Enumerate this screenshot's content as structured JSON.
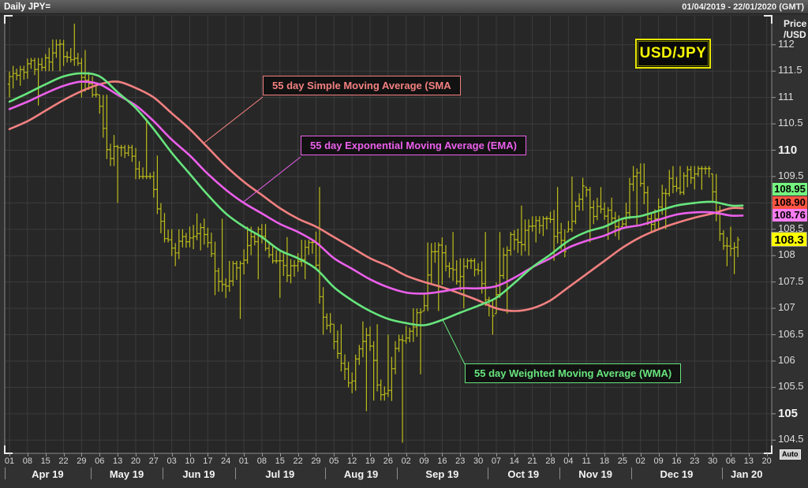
{
  "header": {
    "title": "Daily JPY=",
    "date_range": "01/04/2019 - 22/01/2020 (GMT)"
  },
  "instrument_badge": "USD/JPY",
  "auto_button": "Auto",
  "axis": {
    "unit_line1": "Price",
    "unit_line2": "/USD",
    "y_ticks": [
      112,
      111.5,
      111,
      110.5,
      110,
      109.5,
      109,
      108.5,
      108,
      107.5,
      107,
      106.5,
      106,
      105.5,
      105,
      104.5
    ],
    "y_emphasis": [
      110,
      105
    ],
    "months": [
      {
        "label": "Apr 19",
        "days": [
          "01",
          "08",
          "15",
          "22",
          "29"
        ]
      },
      {
        "label": "May 19",
        "days": [
          "06",
          "13",
          "20",
          "27"
        ]
      },
      {
        "label": "Jun 19",
        "days": [
          "03",
          "10",
          "17",
          "24"
        ]
      },
      {
        "label": "Jul 19",
        "days": [
          "01",
          "08",
          "15",
          "22",
          "29"
        ]
      },
      {
        "label": "Aug 19",
        "days": [
          "05",
          "12",
          "19",
          "26"
        ]
      },
      {
        "label": "Sep 19",
        "days": [
          "02",
          "09",
          "16",
          "23",
          "30"
        ]
      },
      {
        "label": "Oct 19",
        "days": [
          "07",
          "14",
          "21",
          "28"
        ]
      },
      {
        "label": "Nov 19",
        "days": [
          "04",
          "11",
          "18",
          "25"
        ]
      },
      {
        "label": "Dec 19",
        "days": [
          "02",
          "09",
          "16",
          "23",
          "30"
        ]
      },
      {
        "label": "Jan 20",
        "days": [
          "06",
          "13",
          "20"
        ]
      }
    ]
  },
  "annotations": {
    "sma": {
      "label": "55 day Simple Moving Average (SMA"
    },
    "ema": {
      "label": "55 day Exponential Moving Average (EMA)"
    },
    "wma": {
      "label": "55 day Weighted Moving Average (WMA)"
    }
  },
  "chart_data": {
    "type": "ohlc-bar",
    "title": "USD/JPY daily OHLC with 55-day SMA / EMA / WMA",
    "ylim": [
      104.25,
      112.55
    ],
    "ylabel": "Price /USD",
    "grid": true,
    "last_price": 108.3,
    "final_values": {
      "wma": 108.95,
      "sma": 108.9,
      "ema": 108.76
    },
    "days_in_final_week": 3,
    "colors": {
      "plot_bg": "#272727",
      "grid": "#3c3c3c",
      "bars": "#bcbc1c",
      "sma": "#f28080",
      "ema": "#ec5fec",
      "wma": "#67e57d",
      "badge_yellow": "#f7f700"
    },
    "callouts": [
      {
        "series": "wma",
        "value": "108.95",
        "bg": "#75f580"
      },
      {
        "series": "sma",
        "value": "108.90",
        "bg": "#ff5442"
      },
      {
        "series": "ema",
        "value": "108.76",
        "bg": "#f57df0"
      },
      {
        "series": "last",
        "value": "108.3",
        "bg": "#ffff00"
      }
    ],
    "columns": [
      "week_start",
      "open",
      "high",
      "low",
      "close",
      "sma55",
      "ema55",
      "wma55"
    ],
    "weeks": [
      [
        "2019-04-01",
        111.25,
        111.6,
        111.0,
        111.45,
        110.4,
        110.78,
        110.92
      ],
      [
        "2019-04-08",
        111.45,
        111.75,
        110.85,
        111.65,
        110.55,
        110.92,
        111.08
      ],
      [
        "2019-04-15",
        111.6,
        112.1,
        111.5,
        111.95,
        110.75,
        111.08,
        111.25
      ],
      [
        "2019-04-22",
        111.95,
        112.4,
        111.6,
        111.6,
        110.95,
        111.22,
        111.4
      ],
      [
        "2019-04-29",
        111.6,
        111.9,
        111.0,
        111.1,
        111.12,
        111.3,
        111.46
      ],
      [
        "2019-05-06",
        110.9,
        111.05,
        109.7,
        109.95,
        111.25,
        111.25,
        111.4
      ],
      [
        "2019-05-13",
        109.6,
        110.1,
        109.0,
        110.05,
        111.3,
        111.05,
        111.1
      ],
      [
        "2019-05-20",
        110.05,
        110.6,
        109.45,
        109.3,
        111.18,
        110.85,
        110.8
      ],
      [
        "2019-05-27",
        109.35,
        109.9,
        108.25,
        108.3,
        111.0,
        110.55,
        110.4
      ],
      [
        "2019-06-03",
        108.2,
        108.5,
        107.8,
        108.2,
        110.7,
        110.2,
        109.95
      ],
      [
        "2019-06-10",
        108.3,
        108.8,
        108.1,
        108.55,
        110.4,
        109.9,
        109.55
      ],
      [
        "2019-06-17",
        108.5,
        108.7,
        107.25,
        107.3,
        110.05,
        109.55,
        109.15
      ],
      [
        "2019-06-24",
        107.3,
        107.9,
        106.8,
        107.85,
        109.7,
        109.25,
        108.8
      ],
      [
        "2019-07-01",
        108.1,
        108.55,
        107.55,
        108.45,
        109.4,
        109.0,
        108.55
      ],
      [
        "2019-07-08",
        108.4,
        108.6,
        107.85,
        107.9,
        109.15,
        108.8,
        108.35
      ],
      [
        "2019-07-15",
        107.9,
        108.35,
        107.2,
        107.7,
        108.9,
        108.6,
        108.1
      ],
      [
        "2019-07-22",
        107.8,
        108.3,
        107.55,
        108.2,
        108.7,
        108.45,
        107.95
      ],
      [
        "2019-07-29",
        108.5,
        109.3,
        106.5,
        106.6,
        108.55,
        108.25,
        107.75
      ],
      [
        "2019-08-05",
        106.0,
        106.7,
        105.5,
        105.7,
        108.35,
        107.95,
        107.4
      ],
      [
        "2019-08-12",
        105.4,
        106.75,
        105.05,
        106.4,
        108.15,
        107.75,
        107.15
      ],
      [
        "2019-08-19",
        106.4,
        106.7,
        105.25,
        105.4,
        107.95,
        107.55,
        106.95
      ],
      [
        "2019-08-26",
        105.1,
        106.5,
        104.45,
        106.3,
        107.8,
        107.4,
        106.8
      ],
      [
        "2019-09-02",
        106.2,
        107.0,
        105.75,
        106.95,
        107.62,
        107.3,
        106.72
      ],
      [
        "2019-09-09",
        107.1,
        108.25,
        106.95,
        108.1,
        107.5,
        107.28,
        106.68
      ],
      [
        "2019-09-16",
        108.1,
        108.45,
        107.45,
        107.55,
        107.4,
        107.32,
        106.78
      ],
      [
        "2019-09-23",
        107.55,
        107.95,
        107.0,
        107.9,
        107.28,
        107.38,
        106.92
      ],
      [
        "2019-09-30",
        107.9,
        108.45,
        106.5,
        106.95,
        107.15,
        107.38,
        107.05
      ],
      [
        "2019-10-07",
        106.95,
        108.45,
        106.9,
        108.3,
        107.0,
        107.42,
        107.2
      ],
      [
        "2019-10-14",
        108.25,
        108.95,
        108.0,
        108.45,
        106.95,
        107.58,
        107.48
      ],
      [
        "2019-10-21",
        108.55,
        108.75,
        108.25,
        108.65,
        107.0,
        107.78,
        107.78
      ],
      [
        "2019-10-28",
        108.8,
        109.3,
        107.9,
        108.2,
        107.15,
        107.95,
        108.02
      ],
      [
        "2019-11-04",
        108.6,
        109.5,
        108.45,
        109.25,
        107.4,
        108.15,
        108.28
      ],
      [
        "2019-11-11",
        109.2,
        109.3,
        108.25,
        108.8,
        107.65,
        108.28,
        108.45
      ],
      [
        "2019-11-18",
        108.9,
        109.1,
        108.3,
        108.65,
        107.9,
        108.38,
        108.55
      ],
      [
        "2019-11-25",
        108.7,
        109.7,
        108.55,
        109.5,
        108.15,
        108.52,
        108.7
      ],
      [
        "2019-12-02",
        109.55,
        109.75,
        108.45,
        108.6,
        108.35,
        108.58,
        108.75
      ],
      [
        "2019-12-09",
        108.6,
        109.7,
        108.5,
        109.35,
        108.5,
        108.68,
        108.85
      ],
      [
        "2019-12-16",
        109.4,
        109.7,
        109.15,
        109.45,
        108.62,
        108.78,
        108.95
      ],
      [
        "2019-12-23",
        109.4,
        109.7,
        109.25,
        109.55,
        108.72,
        108.82,
        109.0
      ],
      [
        "2019-12-30",
        109.5,
        109.55,
        107.8,
        108.1,
        108.8,
        108.82,
        109.02
      ],
      [
        "2020-01-06",
        107.9,
        108.55,
        107.65,
        108.3,
        108.9,
        108.76,
        108.95
      ]
    ]
  }
}
